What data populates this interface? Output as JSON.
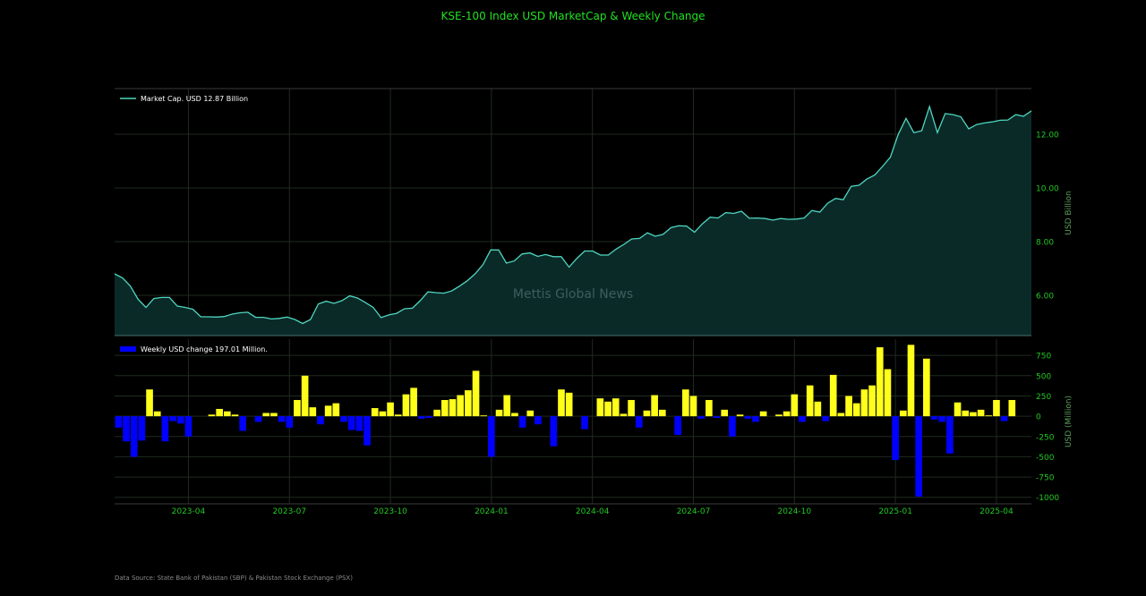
{
  "title": "KSE-100 Index USD MarketCap & Weekly Change",
  "watermark": "Mettis Global News",
  "source": "Data Source: State Bank of Pakistan (SBP) & Pakistan Stock Exchange (PSX)",
  "colors": {
    "background": "#000000",
    "title": "#22e022",
    "tick": "#22c822",
    "axis_label": "#5aa05a",
    "line": "#4fd6c0",
    "area": "#0a2a28",
    "bar_positive": "#ffff1a",
    "bar_negative": "#0000ff",
    "grid": "#1f2a1f",
    "frame": "#3a3a3a"
  },
  "chart_data": [
    {
      "type": "area",
      "legend": "Market Cap. USD 12.87 Billion",
      "legend_position": "top-left",
      "ylabel": "USD Billion",
      "ylim": [
        4.5,
        13.7
      ],
      "yticks": [
        6.0,
        8.0,
        10.0,
        12.0
      ],
      "ytick_labels": [
        "6.00",
        "8.00",
        "10.00",
        "12.00"
      ],
      "grid": true,
      "values": [
        6.8,
        6.65,
        6.35,
        5.85,
        5.55,
        5.88,
        5.92,
        5.92,
        5.6,
        5.55,
        5.48,
        5.2,
        5.2,
        5.19,
        5.21,
        5.3,
        5.35,
        5.37,
        5.18,
        5.18,
        5.12,
        5.14,
        5.19,
        5.1,
        4.95,
        5.1,
        5.68,
        5.78,
        5.7,
        5.8,
        5.98,
        5.9,
        5.73,
        5.55,
        5.17,
        5.27,
        5.33,
        5.5,
        5.52,
        5.8,
        6.13,
        6.1,
        6.08,
        6.16,
        6.34,
        6.54,
        6.8,
        7.14,
        7.69,
        7.69,
        7.2,
        7.28,
        7.54,
        7.58,
        7.45,
        7.52,
        7.44,
        7.44,
        7.05,
        7.38,
        7.65,
        7.65,
        7.5,
        7.5,
        7.72,
        7.9,
        8.1,
        8.12,
        8.33,
        8.2,
        8.27,
        8.52,
        8.59,
        8.58,
        8.35,
        8.66,
        8.91,
        8.88,
        9.08,
        9.05,
        9.13,
        8.87,
        8.88,
        8.86,
        8.8,
        8.86,
        8.83,
        8.84,
        8.88,
        9.16,
        9.1,
        9.43,
        9.61,
        9.56,
        10.06,
        10.1,
        10.33,
        10.48,
        10.8,
        11.15,
        11.99,
        12.59,
        12.06,
        12.13,
        13.03,
        12.06,
        12.77,
        12.73,
        12.65,
        12.2,
        12.36,
        12.42,
        12.46,
        12.52,
        12.53,
        12.73,
        12.67,
        12.87
      ]
    },
    {
      "type": "bar",
      "legend": "Weekly USD change 197.01 Million.",
      "legend_position": "top-left",
      "ylabel": "USD (Million)",
      "ylim": [
        -1080,
        950
      ],
      "yticks": [
        -1000,
        -750,
        -500,
        -250,
        0,
        250,
        500,
        750
      ],
      "grid": true,
      "values": [
        -140,
        -310,
        -500,
        -300,
        330,
        60,
        -310,
        -60,
        -90,
        -250,
        0,
        0,
        20,
        90,
        60,
        20,
        -180,
        0,
        -70,
        40,
        40,
        -70,
        -140,
        200,
        500,
        110,
        -100,
        130,
        160,
        -70,
        -170,
        -180,
        -360,
        100,
        60,
        170,
        20,
        270,
        350,
        -30,
        -20,
        80,
        200,
        210,
        260,
        320,
        560,
        10,
        -500,
        80,
        260,
        40,
        -140,
        70,
        -100,
        0,
        -370,
        330,
        290,
        0,
        -160,
        0,
        220,
        180,
        220,
        30,
        200,
        -140,
        70,
        260,
        80,
        0,
        -230,
        330,
        250,
        -30,
        200,
        -20,
        80,
        -250,
        20,
        -30,
        -70,
        60,
        0,
        20,
        60,
        270,
        -70,
        380,
        180,
        -60,
        510,
        40,
        250,
        160,
        330,
        380,
        850,
        580,
        -540,
        70,
        880,
        -990,
        710,
        -40,
        -70,
        -460,
        170,
        70,
        50,
        80,
        10,
        200,
        -60,
        200
      ]
    }
  ],
  "x_axis": {
    "tick_labels": [
      "2023-04",
      "2023-07",
      "2023-10",
      "2024-01",
      "2024-04",
      "2024-07",
      "2024-10",
      "2025-01",
      "2025-04"
    ],
    "tick_weeks": [
      9.5,
      22.5,
      35.5,
      48.5,
      61.5,
      74.5,
      87.5,
      100.5,
      113.5
    ]
  }
}
